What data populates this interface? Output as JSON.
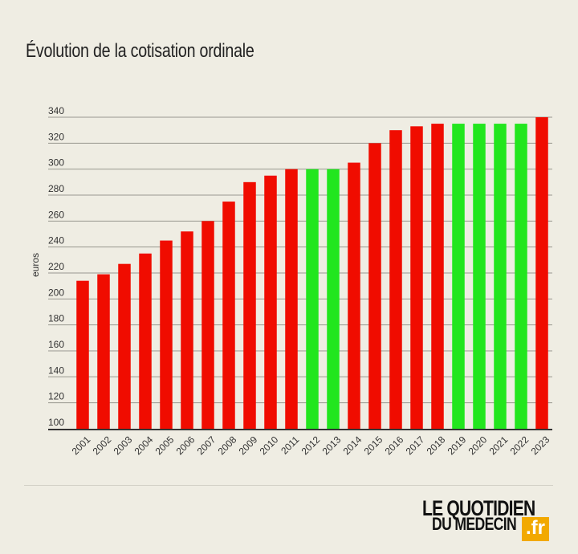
{
  "header": {
    "title": "Évolution de la cotisation ordinale"
  },
  "chart_data": {
    "type": "bar",
    "title": "Évolution de la cotisation ordinale",
    "xlabel": "",
    "ylabel": "euros",
    "ylim": [
      100,
      340
    ],
    "yticks": [
      100,
      120,
      140,
      160,
      180,
      200,
      220,
      240,
      260,
      280,
      300,
      320,
      340
    ],
    "grid": true,
    "categories": [
      "2001",
      "2002",
      "2003",
      "2004",
      "2005",
      "2006",
      "2007",
      "2008",
      "2009",
      "2010",
      "2011",
      "2012",
      "2013",
      "2014",
      "2015",
      "2016",
      "2017",
      "2018",
      "2019",
      "2020",
      "2021",
      "2022",
      "2023"
    ],
    "values": [
      214,
      219,
      227,
      235,
      245,
      252,
      260,
      275,
      290,
      295,
      300,
      300,
      300,
      305,
      320,
      330,
      333,
      335,
      335,
      335,
      335,
      335,
      340
    ],
    "bar_colors": [
      "#f00c00",
      "#f00c00",
      "#f00c00",
      "#f00c00",
      "#f00c00",
      "#f00c00",
      "#f00c00",
      "#f00c00",
      "#f00c00",
      "#f00c00",
      "#f00c00",
      "#22e61e",
      "#22e61e",
      "#f00c00",
      "#f00c00",
      "#f00c00",
      "#f00c00",
      "#f00c00",
      "#22e61e",
      "#22e61e",
      "#22e61e",
      "#22e61e",
      "#f00c00"
    ]
  },
  "logo": {
    "line1": "LE QUOTIDIEN",
    "line2": "DU MEDECIN",
    "suffix": ".fr"
  },
  "colors": {
    "background": "#efede3",
    "increase": "#f00c00",
    "unchanged": "#22e61e",
    "grid": "#9a9890",
    "axis": "#333333"
  }
}
